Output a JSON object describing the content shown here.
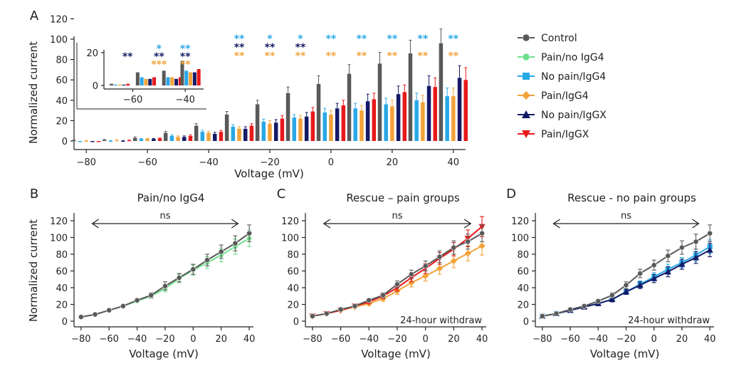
{
  "legend": [
    {
      "label": "Control",
      "color": "#595959",
      "marker": "circle"
    },
    {
      "label": "Pain/no IgG4",
      "color": "#6ee08c",
      "marker": "circle"
    },
    {
      "label": "No pain/IgG4",
      "color": "#29a8e6",
      "marker": "square"
    },
    {
      "label": "Pain/IgG4",
      "color": "#f2a33a",
      "marker": "diamond"
    },
    {
      "label": "No pain/IgGX",
      "color": "#141a66",
      "marker": "triangle-up"
    },
    {
      "label": "Pain/IgGX",
      "color": "#e8191b",
      "marker": "triangle-down"
    }
  ],
  "chart_data": [
    {
      "panel": "A",
      "type": "bar",
      "xlabel": "Voltage (mV)",
      "ylabel": "Normalized current",
      "ylim": [
        -5,
        120
      ],
      "yticks": [
        0,
        20,
        40,
        60,
        80,
        100,
        120
      ],
      "xticks": [
        -80,
        -60,
        -40,
        -20,
        0,
        20,
        40
      ],
      "categories": [
        -80,
        -70,
        -60,
        -50,
        -40,
        -30,
        -20,
        -10,
        0,
        10,
        20,
        30,
        40
      ],
      "series": [
        {
          "name": "Control",
          "color": "#595959",
          "values": [
            0.5,
            1,
            3,
            8,
            15,
            26,
            36,
            47,
            56,
            66,
            76,
            86,
            96
          ],
          "errors": [
            0.5,
            0.5,
            1,
            1.5,
            2,
            3,
            4,
            6,
            8,
            9,
            11,
            13,
            14
          ]
        },
        {
          "name": "No pain/IgG4",
          "color": "#29a8e6",
          "values": [
            -1,
            0,
            2,
            5,
            9,
            14,
            19,
            23,
            28,
            32,
            36,
            40,
            44
          ],
          "errors": [
            0.5,
            0.5,
            0.5,
            1,
            1.5,
            2,
            2.5,
            3,
            4,
            5,
            6,
            7,
            8
          ]
        },
        {
          "name": "Pain/IgG4",
          "color": "#f2a33a",
          "values": [
            0,
            0.5,
            2,
            4,
            8,
            12,
            17,
            22,
            26,
            30,
            34,
            38,
            44
          ],
          "errors": [
            0.5,
            0.5,
            0.5,
            1,
            1.5,
            2,
            3,
            3,
            4,
            5,
            6,
            7,
            8
          ]
        },
        {
          "name": "No pain/IgGX",
          "color": "#141a66",
          "values": [
            -1,
            0,
            2,
            4,
            7,
            12,
            18,
            24,
            32,
            39,
            46,
            54,
            62
          ],
          "errors": [
            0.5,
            0.5,
            0.5,
            1,
            1.5,
            2,
            3,
            4,
            5,
            7,
            8,
            10,
            12
          ]
        },
        {
          "name": "Pain/IgGX",
          "color": "#e8191b",
          "values": [
            -1,
            0.5,
            2.5,
            5,
            9,
            15,
            22,
            29,
            35,
            41,
            48,
            53,
            60
          ],
          "errors": [
            0.5,
            0.5,
            0.5,
            1,
            1.5,
            2,
            3,
            4,
            5,
            6,
            7,
            9,
            12
          ]
        }
      ],
      "significance": [
        {
          "x": -30,
          "rows": [
            "**",
            "**",
            "**"
          ]
        },
        {
          "x": -20,
          "rows": [
            "*",
            "**",
            "**"
          ]
        },
        {
          "x": -10,
          "rows": [
            "*",
            "**",
            "**"
          ]
        },
        {
          "x": 0,
          "rows": [
            "**",
            "",
            "**"
          ]
        },
        {
          "x": 10,
          "rows": [
            "**",
            "",
            "**"
          ]
        },
        {
          "x": 20,
          "rows": [
            "**",
            "",
            "**"
          ]
        },
        {
          "x": 30,
          "rows": [
            "**",
            "",
            "**"
          ]
        },
        {
          "x": 40,
          "rows": [
            "**",
            "",
            "**"
          ]
        }
      ],
      "significance_colors": [
        "#29a8e6",
        "#141a66",
        "#f2a33a"
      ],
      "inset": {
        "ylim": [
          -2,
          25
        ],
        "yticks": [
          0,
          20
        ],
        "xticks": [
          -60,
          -40
        ],
        "categories": [
          -65,
          -55,
          -45,
          -38
        ],
        "series": [
          {
            "name": "Control",
            "color": "#595959",
            "values": [
              1,
              8,
              9,
              15
            ]
          },
          {
            "name": "No pain/IgG4",
            "color": "#29a8e6",
            "values": [
              0.5,
              5,
              5,
              9
            ]
          },
          {
            "name": "Pain/IgG4",
            "color": "#f2a33a",
            "values": [
              0.5,
              4,
              5,
              8
            ]
          },
          {
            "name": "No pain/IgGX",
            "color": "#141a66",
            "values": [
              0.5,
              4,
              4,
              8
            ]
          },
          {
            "name": "Pain/IgGX",
            "color": "#e8191b",
            "values": [
              1,
              5,
              5,
              10
            ]
          }
        ],
        "significance": [
          {
            "x": -62,
            "rows": [
              "",
              "**",
              ""
            ]
          },
          {
            "x": -50,
            "rows": [
              "*",
              "**",
              "***"
            ]
          },
          {
            "x": -40,
            "rows": [
              "**",
              "**",
              "**"
            ]
          }
        ]
      }
    },
    {
      "panel": "B",
      "type": "line",
      "title": "Pain/no IgG4",
      "xlabel": "Voltage (mV)",
      "ylabel": "Normalized current",
      "xlim": [
        -85,
        43
      ],
      "ylim": [
        -5,
        120
      ],
      "xticks": [
        -80,
        -60,
        -40,
        -20,
        0,
        20,
        40
      ],
      "yticks": [
        0,
        20,
        40,
        60,
        80,
        100,
        120
      ],
      "x": [
        -80,
        -70,
        -60,
        -50,
        -40,
        -30,
        -20,
        -10,
        0,
        10,
        20,
        30,
        40
      ],
      "series": [
        {
          "name": "Pain/no IgG4",
          "color": "#6ee08c",
          "marker": "circle",
          "values": [
            5,
            8,
            13,
            18,
            24,
            30,
            39,
            51,
            61,
            70,
            79,
            89,
            99
          ],
          "errors": [
            0.5,
            0.5,
            1,
            1,
            2,
            3,
            4,
            5,
            6,
            7,
            8,
            9,
            10
          ]
        },
        {
          "name": "Control",
          "color": "#595959",
          "marker": "circle",
          "values": [
            5,
            8,
            13,
            18,
            25,
            31,
            42,
            52,
            62,
            73,
            83,
            93,
            105
          ],
          "errors": [
            0.5,
            0.5,
            1,
            1,
            2,
            3,
            5,
            5,
            6,
            7,
            8,
            9,
            10
          ]
        }
      ],
      "annotation": "ns"
    },
    {
      "panel": "C",
      "type": "line",
      "title": "Rescue – pain groups",
      "xlabel": "Voltage (mV)",
      "xlim": [
        -85,
        43
      ],
      "ylim": [
        -5,
        120
      ],
      "xticks": [
        -80,
        -60,
        -40,
        -20,
        0,
        20,
        40
      ],
      "yticks": [
        0,
        20,
        40,
        60,
        80,
        100,
        120
      ],
      "x": [
        -80,
        -70,
        -60,
        -50,
        -40,
        -30,
        -20,
        -10,
        0,
        10,
        20,
        30,
        40
      ],
      "series": [
        {
          "name": "Pain/IgG4",
          "color": "#f2a33a",
          "marker": "diamond",
          "values": [
            6,
            9,
            13,
            17,
            21,
            27,
            36,
            46,
            54,
            63,
            72,
            81,
            90
          ],
          "errors": [
            1,
            1,
            1,
            1,
            2,
            3,
            4,
            5,
            6,
            7,
            8,
            9,
            11
          ]
        },
        {
          "name": "Pain/IgGX",
          "color": "#e8191b",
          "marker": "triangle-down",
          "values": [
            6,
            9,
            13,
            18,
            23,
            30,
            40,
            52,
            63,
            75,
            86,
            99,
            113
          ],
          "errors": [
            1,
            1,
            1,
            1,
            2,
            3,
            4,
            5,
            6,
            7,
            8,
            10,
            12
          ]
        },
        {
          "name": "Control",
          "color": "#595959",
          "marker": "circle",
          "values": [
            6,
            9,
            14,
            18,
            25,
            31,
            44,
            56,
            66,
            77,
            88,
            95,
            105
          ],
          "errors": [
            1,
            1,
            1,
            1,
            2,
            3,
            4,
            5,
            6,
            7,
            8,
            9,
            10
          ]
        }
      ],
      "annotation": "ns",
      "note": "24-hour withdraw"
    },
    {
      "panel": "D",
      "type": "line",
      "title": "Rescue - no pain groups",
      "xlabel": "Voltage (mV)",
      "xlim": [
        -85,
        43
      ],
      "ylim": [
        -5,
        120
      ],
      "xticks": [
        -80,
        -60,
        -40,
        -20,
        0,
        20,
        40
      ],
      "yticks": [
        0,
        20,
        40,
        60,
        80,
        100,
        120
      ],
      "x": [
        -80,
        -70,
        -60,
        -50,
        -40,
        -30,
        -20,
        -10,
        0,
        10,
        20,
        30,
        40
      ],
      "series": [
        {
          "name": "No pain/IgG4",
          "color": "#29a8e6",
          "marker": "square",
          "values": [
            6,
            9,
            13,
            17,
            21,
            26,
            35,
            44,
            53,
            62,
            70,
            79,
            89
          ],
          "errors": [
            1,
            1,
            1,
            1,
            2,
            3,
            3,
            4,
            5,
            6,
            6,
            7,
            8
          ]
        },
        {
          "name": "No pain/IgGX",
          "color": "#141a66",
          "marker": "triangle-up",
          "values": [
            6,
            9,
            13,
            17,
            21,
            26,
            35,
            43,
            51,
            59,
            68,
            76,
            85
          ],
          "errors": [
            1,
            1,
            1,
            1,
            2,
            3,
            3,
            4,
            5,
            6,
            6,
            7,
            8
          ]
        },
        {
          "name": "Control",
          "color": "#595959",
          "marker": "circle",
          "values": [
            6,
            9,
            14,
            18,
            24,
            31,
            43,
            57,
            67,
            78,
            88,
            95,
            105
          ],
          "errors": [
            1,
            1,
            1,
            1,
            2,
            3,
            4,
            5,
            6,
            7,
            8,
            9,
            10
          ]
        }
      ],
      "annotation": "ns",
      "note": "24-hour withdraw"
    }
  ]
}
